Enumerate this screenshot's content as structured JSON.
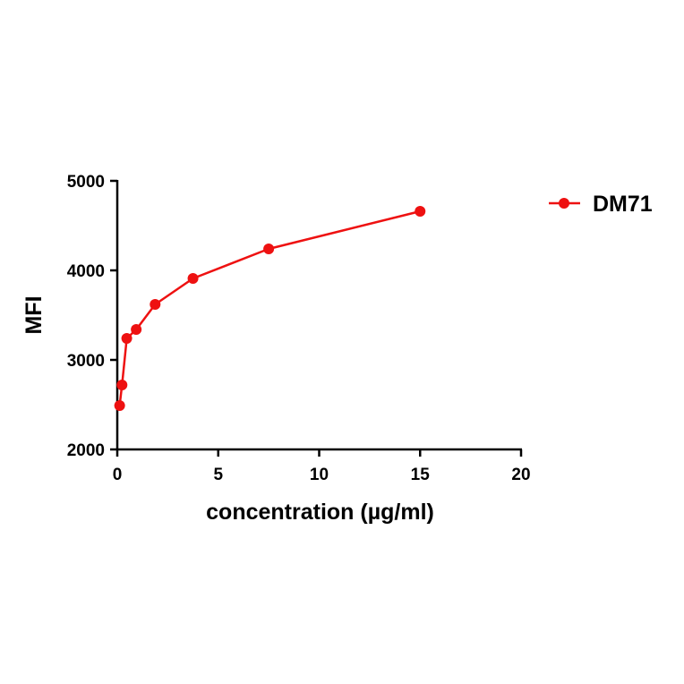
{
  "chart_data": {
    "type": "line",
    "title": "",
    "xlabel": "concentration (µg/ml)",
    "ylabel": "MFI",
    "xlim": [
      0,
      20
    ],
    "ylim": [
      2000,
      5000
    ],
    "xticks": [
      0,
      5,
      10,
      15,
      20
    ],
    "yticks": [
      2000,
      3000,
      4000,
      5000
    ],
    "xtick_labels": [
      "0",
      "5",
      "10",
      "15",
      "20"
    ],
    "ytick_labels": [
      "2000",
      "3000",
      "4000",
      "5000"
    ],
    "grid": false,
    "legend_position": "top-right",
    "series": [
      {
        "name": "DM71",
        "color": "#ee1111",
        "marker": "circle",
        "x": [
          0.117,
          0.234,
          0.469,
          0.938,
          1.875,
          3.75,
          7.5,
          15
        ],
        "y": [
          2490,
          2720,
          3240,
          3340,
          3620,
          3910,
          4240,
          4660
        ]
      }
    ]
  }
}
